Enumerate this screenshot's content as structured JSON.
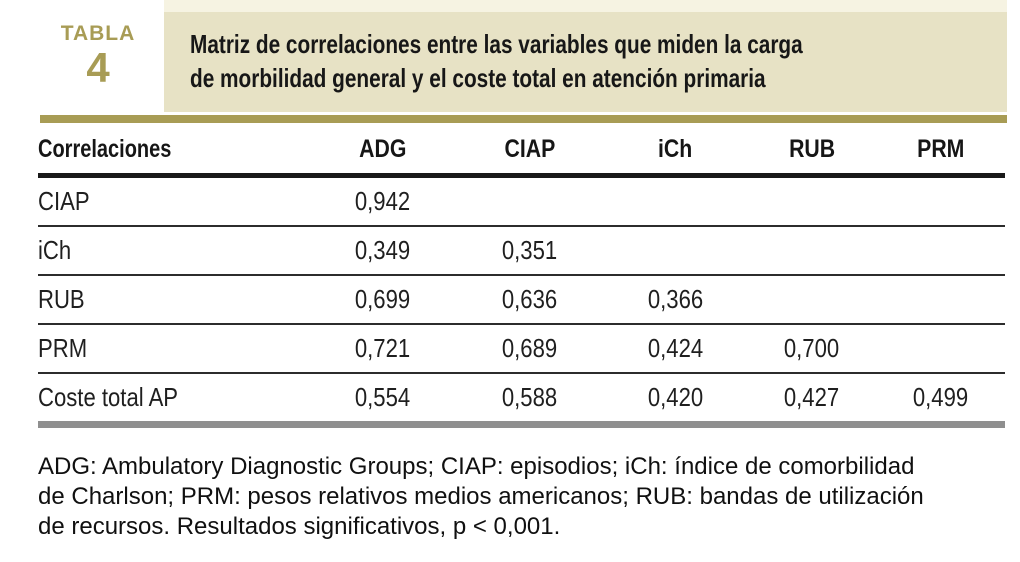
{
  "badge": {
    "label": "TABLA",
    "number": "4"
  },
  "title": {
    "line1": "Matriz de correlaciones entre las variables que miden la carga",
    "line2": "de morbilidad general y el coste total en atención primaria"
  },
  "table": {
    "header": {
      "label": "Correlaciones",
      "columns": [
        "ADG",
        "CIAP",
        "iCh",
        "RUB",
        "PRM"
      ]
    },
    "rows": [
      {
        "label": "CIAP",
        "values": [
          "0,942",
          "",
          "",
          "",
          ""
        ]
      },
      {
        "label": "iCh",
        "values": [
          "0,349",
          "0,351",
          "",
          "",
          ""
        ]
      },
      {
        "label": "RUB",
        "values": [
          "0,699",
          "0,636",
          "0,366",
          "",
          ""
        ]
      },
      {
        "label": "PRM",
        "values": [
          "0,721",
          "0,689",
          "0,424",
          "0,700",
          ""
        ]
      },
      {
        "label": "Coste total AP",
        "values": [
          "0,554",
          "0,588",
          "0,420",
          "0,427",
          "0,499"
        ]
      }
    ]
  },
  "footnote": {
    "lines": [
      "ADG: Ambulatory Diagnostic Groups; CIAP: episodios; iCh: índice de comorbilidad",
      "de Charlson; PRM: pesos relativos medios americanos; RUB: bandas de utilización",
      "de recursos. Resultados significativos, p < 0,001."
    ]
  },
  "colors": {
    "accent_olive": "#a89c55",
    "title_box_beige": "#e7e2c5",
    "cream_strip": "#f6f3e2",
    "rule_black": "#191919",
    "separator_gray": "#2c2c2c",
    "bottom_bar_gray": "#8f8f8f",
    "text": "#171717"
  }
}
